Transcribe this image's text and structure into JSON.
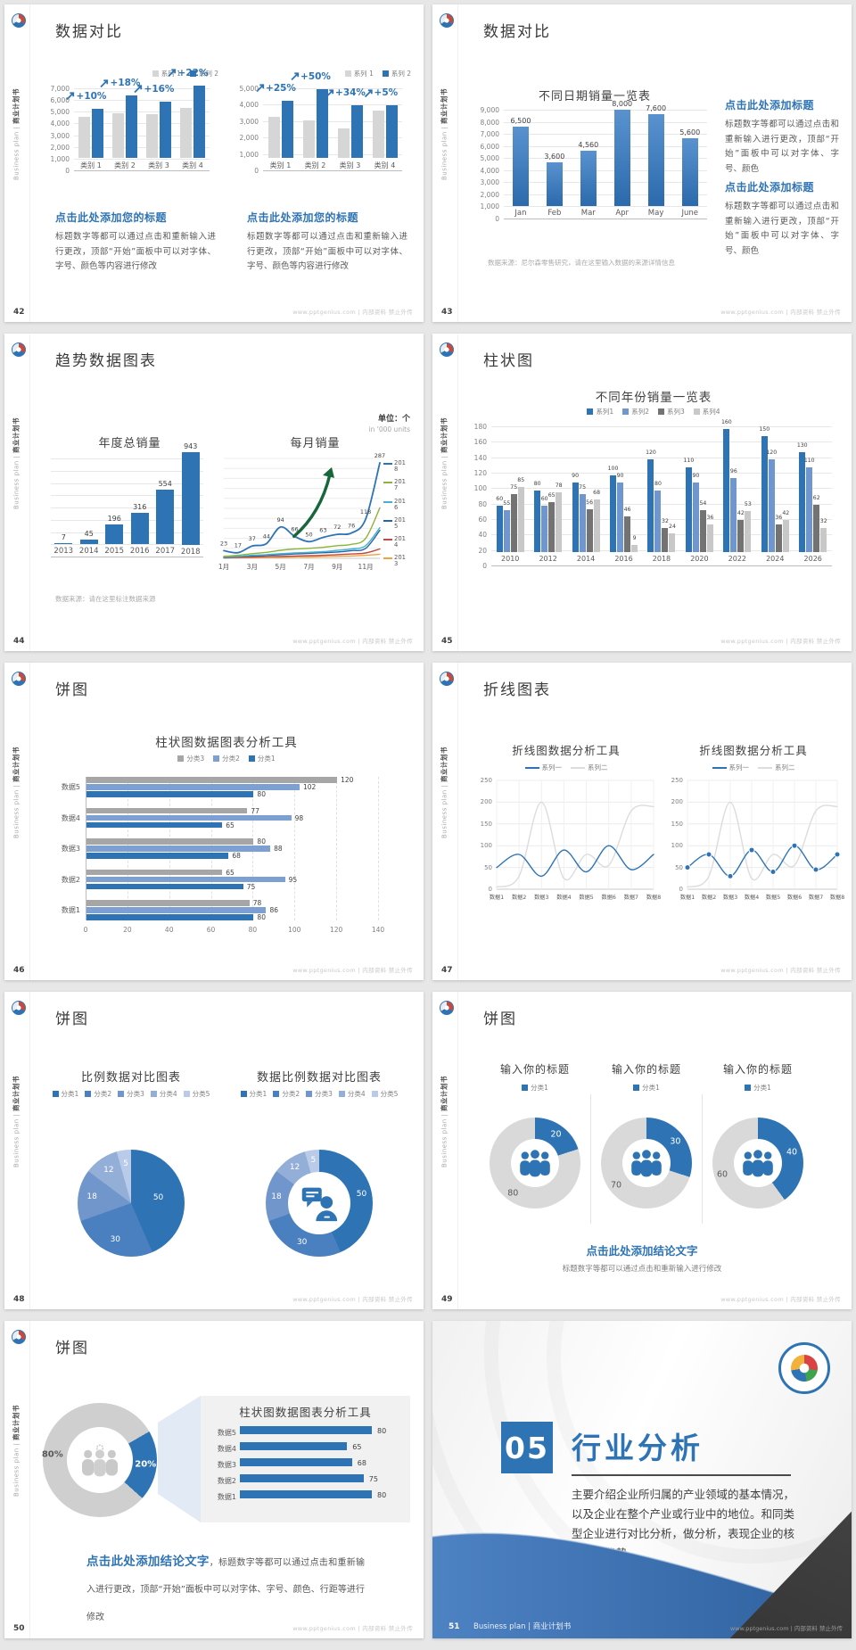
{
  "common": {
    "footer": "www.pptgenius.com | 内部资料 禁止外传",
    "sidebar_en": "Business plan",
    "sidebar_sep": " | ",
    "sidebar_cn": "商业计划书",
    "accent_blue": "#2e74b5",
    "gray_bar": "#d6d6d6"
  },
  "slides": {
    "s42": {
      "page": "42",
      "title": "数据对比",
      "blocks": [
        {
          "heading": "点击此处添加您的标题",
          "body": "标题数字等都可以通过点击和重新输入进行更改，顶部“开始”面板中可以对字体、字号、颜色等内容进行修改"
        },
        {
          "heading": "点击此处添加您的标题",
          "body": "标题数字等都可以通过点击和重新输入进行更改，顶部“开始”面板中可以对字体、字号、颜色等内容进行修改"
        }
      ]
    },
    "s43": {
      "page": "43",
      "title": "数据对比",
      "source": "数据来源：尼尔森零售研究，请在这里输入数据的来源详情信息",
      "blocks": [
        {
          "heading": "点击此处添加标题",
          "body": "标题数字等都可以通过点击和重新输入进行更改，顶部“开始”面板中可以对字体、字号、颜色"
        },
        {
          "heading": "点击此处添加标题",
          "body": "标题数字等都可以通过点击和重新输入进行更改，顶部“开始”面板中可以对字体、字号、颜色"
        }
      ]
    },
    "s44": {
      "page": "44",
      "title": "趋势数据图表",
      "unit_cn": "单位：个",
      "unit_en": "in '000 units",
      "note": "数据来源：请在这里标注数据来源"
    },
    "s45": {
      "page": "45",
      "title": "柱状图"
    },
    "s46": {
      "page": "46",
      "title": "饼图"
    },
    "s47": {
      "page": "47",
      "title": "折线图表"
    },
    "s48": {
      "page": "48",
      "title": "饼图"
    },
    "s49": {
      "page": "49",
      "title": "饼图",
      "conclusion": "点击此处添加结论文字",
      "conclusion_sub": "标题数字等都可以通过点击和重新输入进行修改"
    },
    "s50": {
      "page": "50",
      "title": "饼图",
      "conclusion": "点击此处添加结论文字",
      "conclusion_sub": "，标题数字等都可以通过点击和重新输入进行更改，顶部“开始”面板中可以对字体、字号、颜色、行距等进行修改"
    },
    "s51": {
      "page": "51",
      "number": "05",
      "title": "行业分析",
      "body": "主要介绍企业所归属的产业领域的基本情况，以及企业在整个产业或行业中的地位。和同类型企业进行对比分析，做分析，表现企业的核心竞争优势。",
      "footer_label": "Business plan | 商业计划书"
    }
  },
  "chart_data": [
    {
      "id": "s42a",
      "type": "bar",
      "title": "",
      "categories": [
        "类别 1",
        "类别 2",
        "类别 3",
        "类别 4"
      ],
      "series": [
        {
          "name": "系列 1",
          "color": "#d6d6d6",
          "values": [
            3500,
            3800,
            3700,
            4300
          ]
        },
        {
          "name": "系列 2",
          "color": "#2e74b5",
          "values": [
            4200,
            5300,
            4800,
            6200
          ]
        }
      ],
      "annotations": [
        "+10%",
        "+18%",
        "+16%",
        "+22%"
      ],
      "ylim": [
        0,
        7000
      ],
      "ystep": 1000,
      "legend_position": "top-right",
      "grid": true
    },
    {
      "id": "s42b",
      "type": "bar",
      "title": "",
      "categories": [
        "类别 1",
        "类别 2",
        "类别 3",
        "类别 4"
      ],
      "series": [
        {
          "name": "系列 1",
          "color": "#d6d6d6",
          "values": [
            2500,
            2300,
            1800,
            2900
          ]
        },
        {
          "name": "系列 2",
          "color": "#2e74b5",
          "values": [
            3500,
            4200,
            3200,
            3200
          ]
        }
      ],
      "annotations": [
        "+25%",
        "+50%",
        "+34%",
        "+5%"
      ],
      "ylim": [
        0,
        5000
      ],
      "ystep": 1000,
      "legend_position": "top-right",
      "grid": true
    },
    {
      "id": "s43",
      "type": "bar",
      "title": "不同日期销量一览表",
      "categories": [
        "Jan",
        "Feb",
        "Mar",
        "Apr",
        "May",
        "June"
      ],
      "series": [
        {
          "name": "销量",
          "color": "#2e74b5",
          "values": [
            6500,
            3600,
            4560,
            8000,
            7600,
            5600
          ],
          "labels": [
            "6,500",
            "3,600",
            "4,560",
            "8,000",
            "7,600",
            "5,600"
          ]
        }
      ],
      "ylim": [
        0,
        9000
      ],
      "ystep": 1000,
      "grid": true
    },
    {
      "id": "s44a",
      "type": "bar",
      "title": "年度总销量",
      "categories": [
        "2013",
        "2014",
        "2015",
        "2016",
        "2017",
        "2018"
      ],
      "series": [
        {
          "name": "年度总销量",
          "color": "#2e74b5",
          "values": [
            7,
            45,
            196,
            316,
            554,
            943
          ],
          "labels": [
            "7",
            "45",
            "196",
            "316",
            "554",
            "943"
          ]
        }
      ],
      "ylim": [
        0,
        1000
      ],
      "ystep": 125,
      "grid": true
    },
    {
      "id": "s44b",
      "type": "line",
      "title": "每月销量",
      "x": [
        "1月",
        "3月",
        "5月",
        "7月",
        "9月",
        "11月"
      ],
      "series": [
        {
          "name": "2018",
          "color": "#2e74b5",
          "values": [
            23,
            17,
            37,
            44,
            94,
            66,
            50,
            63,
            72,
            76,
            118,
            287
          ],
          "labeled": true
        },
        {
          "name": "2017",
          "color": "#8cb33a",
          "values": [
            6,
            9,
            14,
            18,
            24,
            28,
            30,
            33,
            38,
            42,
            60,
            152
          ]
        },
        {
          "name": "2016",
          "color": "#45b0d0",
          "values": [
            4,
            6,
            9,
            11,
            14,
            16,
            18,
            20,
            24,
            28,
            38,
            92
          ]
        },
        {
          "name": "2015",
          "color": "#2664a8",
          "values": [
            3,
            5,
            7,
            9,
            11,
            13,
            15,
            17,
            19,
            23,
            30,
            84
          ]
        },
        {
          "name": "2014",
          "color": "#bf4b44",
          "values": [
            2,
            3,
            4,
            5,
            6,
            7,
            8,
            9,
            11,
            13,
            16,
            28
          ]
        },
        {
          "name": "2013",
          "color": "#f0a23c",
          "values": [
            1,
            2,
            2,
            3,
            3,
            4,
            4,
            5,
            6,
            7,
            9,
            12
          ]
        }
      ],
      "ylim": [
        0,
        300
      ],
      "ystep": 30,
      "legend_position": "right",
      "arrow_color": "#17673b"
    },
    {
      "id": "s45",
      "type": "bar",
      "title": "不同年份销量一览表",
      "categories": [
        "2010",
        "2012",
        "2014",
        "2016",
        "2018",
        "2020",
        "2022",
        "2024",
        "2026"
      ],
      "series": [
        {
          "name": "系列1",
          "color": "#2e74b5",
          "values": [
            60,
            80,
            90,
            100,
            120,
            110,
            160,
            150,
            130
          ]
        },
        {
          "name": "系列2",
          "color": "#6f96cf",
          "values": [
            55,
            60,
            75,
            90,
            80,
            90,
            96,
            120,
            110
          ]
        },
        {
          "name": "系列3",
          "color": "#737373",
          "values": [
            75,
            65,
            56,
            46,
            32,
            54,
            42,
            36,
            62
          ]
        },
        {
          "name": "系列4",
          "color": "#c8c8c8",
          "values": [
            85,
            78,
            68,
            9,
            24,
            36,
            53,
            42,
            32
          ]
        }
      ],
      "ylim": [
        0,
        180
      ],
      "ystep": 20,
      "legend_position": "top",
      "show_values": true,
      "grid": true
    },
    {
      "id": "s46",
      "type": "hbar",
      "title": "柱状图数据图表分析工具",
      "categories": [
        "数据5",
        "数据4",
        "数据3",
        "数据2",
        "数据1"
      ],
      "series": [
        {
          "name": "分类3",
          "color": "#a6a6a6",
          "values": [
            120,
            77,
            80,
            65,
            78
          ]
        },
        {
          "name": "分类2",
          "color": "#7da0d2",
          "values": [
            102,
            98,
            88,
            95,
            86
          ]
        },
        {
          "name": "分类1",
          "color": "#2e74b5",
          "values": [
            80,
            65,
            68,
            75,
            80
          ]
        }
      ],
      "xlim": [
        0,
        140
      ],
      "xstep": 20,
      "legend_position": "top",
      "grid": true
    },
    {
      "id": "s47a",
      "type": "line",
      "title": "折线图数据分析工具",
      "x": [
        "数据1",
        "数据2",
        "数据3",
        "数据4",
        "数据5",
        "数据6",
        "数据7",
        "数据8"
      ],
      "series": [
        {
          "name": "系列一",
          "color": "#2e74b5",
          "values": [
            50,
            80,
            30,
            90,
            40,
            100,
            45,
            80
          ]
        },
        {
          "name": "系列二",
          "color": "#dcdcdc",
          "values": [
            5,
            30,
            200,
            25,
            80,
            55,
            180,
            190
          ]
        }
      ],
      "ylim": [
        0,
        250
      ],
      "ystep": 50,
      "legend_position": "top",
      "markers": false,
      "grid": true
    },
    {
      "id": "s47b",
      "type": "line",
      "title": "折线图数据分析工具",
      "x": [
        "数据1",
        "数据2",
        "数据3",
        "数据4",
        "数据5",
        "数据6",
        "数据7",
        "数据8"
      ],
      "series": [
        {
          "name": "系列一",
          "color": "#2e74b5",
          "values": [
            50,
            80,
            30,
            90,
            40,
            100,
            45,
            80
          ]
        },
        {
          "name": "系列二",
          "color": "#dcdcdc",
          "values": [
            5,
            30,
            200,
            25,
            80,
            55,
            180,
            190
          ]
        }
      ],
      "ylim": [
        0,
        250
      ],
      "ystep": 50,
      "legend_position": "top",
      "markers": true,
      "grid": true
    },
    {
      "id": "s48a",
      "type": "pie",
      "title": "比例数据对比图表",
      "labels": [
        "分类1",
        "分类2",
        "分类3",
        "分类4",
        "分类5"
      ],
      "values": [
        50,
        30,
        18,
        12,
        5
      ],
      "colors": [
        "#2e74b5",
        "#4a80c0",
        "#7096cb",
        "#94afd7",
        "#b9cbe8"
      ]
    },
    {
      "id": "s48b",
      "type": "donut",
      "title": "数据比例数据对比图表",
      "labels": [
        "分类1",
        "分类2",
        "分类3",
        "分类4",
        "分类5"
      ],
      "values": [
        50,
        30,
        18,
        12,
        5
      ],
      "colors": [
        "#2e74b5",
        "#4a80c0",
        "#7096cb",
        "#94afd7",
        "#b9cbe8"
      ],
      "icon": "person_chat"
    },
    {
      "id": "s49a",
      "type": "donut",
      "title": "输入你的标题",
      "labels": [
        "分类1"
      ],
      "values": [
        20,
        80
      ],
      "colors": [
        "#2e74b5",
        "#d9d9d9"
      ],
      "icon": "people_blue"
    },
    {
      "id": "s49b",
      "type": "donut",
      "title": "输入你的标题",
      "labels": [
        "分类1"
      ],
      "values": [
        30,
        70
      ],
      "colors": [
        "#2e74b5",
        "#d9d9d9"
      ],
      "icon": "people_blue"
    },
    {
      "id": "s49c",
      "type": "donut",
      "title": "输入你的标题",
      "labels": [
        "分类1"
      ],
      "values": [
        40,
        60
      ],
      "colors": [
        "#2e74b5",
        "#d9d9d9"
      ],
      "icon": "people_blue"
    },
    {
      "id": "s50a",
      "type": "donut",
      "title": "",
      "value_labels": [
        "20%",
        "80%"
      ],
      "values": [
        20,
        80
      ],
      "colors": [
        "#2e74b5",
        "#cfcfcf"
      ],
      "icon": "people_gray",
      "start": 60
    },
    {
      "id": "s50b",
      "type": "hbar_simple",
      "title": "柱状图数据图表分析工具",
      "categories": [
        "数据5",
        "数据4",
        "数据3",
        "数据2",
        "数据1"
      ],
      "values": [
        80,
        65,
        68,
        75,
        80
      ],
      "color": "#2e74b5"
    }
  ]
}
